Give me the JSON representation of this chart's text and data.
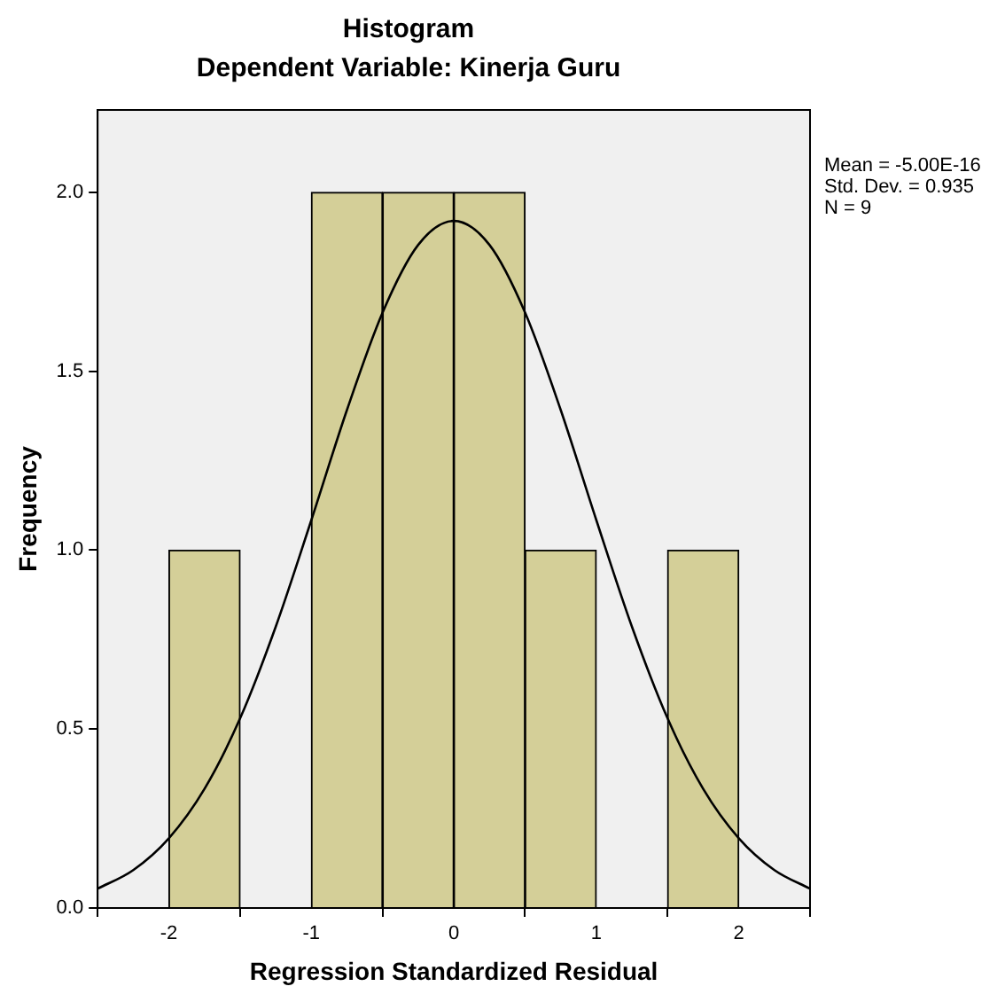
{
  "chart_data": {
    "type": "histogram",
    "title": "Histogram",
    "subtitle": "Dependent Variable: Kinerja Guru",
    "xlabel": "Regression Standardized Residual",
    "ylabel": "Frequency",
    "bins": [
      -2,
      -1.5,
      -1,
      -0.5,
      0,
      0.5,
      1,
      1.5,
      2
    ],
    "values": [
      1,
      0,
      2,
      2,
      2,
      1,
      0,
      1
    ],
    "color": "#d4cf98",
    "series": [
      {
        "type": "line",
        "color": "#000000",
        "x": [
          -2.5,
          -2.25,
          -2,
          -1.75,
          -1.5,
          -1.25,
          -1,
          -0.75,
          -0.5,
          -0.25,
          0,
          0.25,
          0.5,
          0.75,
          1,
          1.25,
          1.5,
          1.75,
          2,
          2.25,
          2.5
        ],
        "values": [
          0.054,
          0.106,
          0.195,
          0.333,
          0.53,
          0.786,
          1.084,
          1.392,
          1.664,
          1.853,
          1.92,
          1.853,
          1.664,
          1.392,
          1.084,
          0.786,
          0.53,
          0.333,
          0.195,
          0.106,
          0.054
        ]
      }
    ],
    "marker": "none",
    "line_style": "solid",
    "grid": false,
    "legend": false,
    "xlim": [
      -2.5,
      2.5
    ],
    "xticks": [
      -2,
      -1,
      0,
      1,
      2
    ],
    "ylim": [
      0,
      2.23
    ],
    "yticks": [
      {
        "value": 0,
        "label": "0.0"
      },
      {
        "value": 0.5,
        "label": "0.5"
      },
      {
        "value": 1,
        "label": "1.0"
      },
      {
        "value": 1.5,
        "label": "1.5"
      },
      {
        "value": 2,
        "label": "2.0"
      }
    ],
    "annotations": [
      "Mean = -5.00E-16",
      "Std. Dev. = 0.935",
      "N = 9"
    ]
  }
}
